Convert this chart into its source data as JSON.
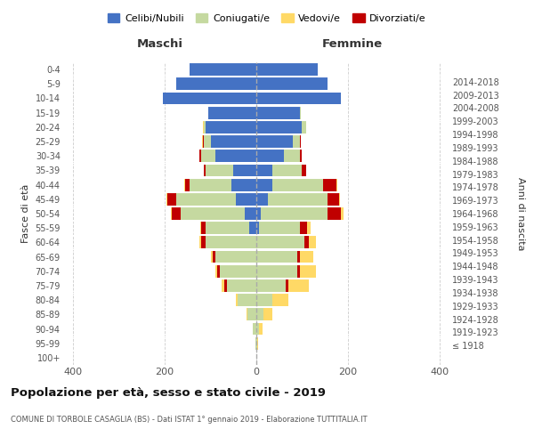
{
  "age_groups": [
    "100+",
    "95-99",
    "90-94",
    "85-89",
    "80-84",
    "75-79",
    "70-74",
    "65-69",
    "60-64",
    "55-59",
    "50-54",
    "45-49",
    "40-44",
    "35-39",
    "30-34",
    "25-29",
    "20-24",
    "15-19",
    "10-14",
    "5-9",
    "0-4"
  ],
  "birth_years": [
    "≤ 1918",
    "1919-1923",
    "1924-1928",
    "1929-1933",
    "1934-1938",
    "1939-1943",
    "1944-1948",
    "1949-1953",
    "1954-1958",
    "1959-1963",
    "1964-1968",
    "1969-1973",
    "1974-1978",
    "1979-1983",
    "1984-1988",
    "1989-1993",
    "1994-1998",
    "1999-2003",
    "2004-2008",
    "2009-2013",
    "2014-2018"
  ],
  "males": {
    "celibi": [
      0,
      0,
      0,
      0,
      0,
      0,
      0,
      0,
      0,
      15,
      25,
      45,
      55,
      50,
      90,
      100,
      110,
      105,
      205,
      175,
      145
    ],
    "coniugati": [
      0,
      2,
      8,
      20,
      40,
      65,
      80,
      90,
      110,
      95,
      140,
      130,
      90,
      60,
      30,
      15,
      5,
      0,
      0,
      0,
      0
    ],
    "vedovi": [
      0,
      0,
      0,
      2,
      5,
      5,
      5,
      5,
      5,
      2,
      2,
      2,
      2,
      0,
      0,
      2,
      2,
      0,
      0,
      0,
      0
    ],
    "divorziati": [
      0,
      0,
      0,
      0,
      0,
      5,
      5,
      5,
      10,
      10,
      20,
      20,
      10,
      5,
      5,
      2,
      0,
      0,
      0,
      0,
      0
    ]
  },
  "females": {
    "nubili": [
      0,
      0,
      0,
      0,
      0,
      0,
      0,
      0,
      0,
      5,
      10,
      25,
      35,
      35,
      60,
      80,
      100,
      95,
      185,
      155,
      135
    ],
    "coniugate": [
      0,
      2,
      5,
      15,
      35,
      65,
      90,
      90,
      105,
      90,
      145,
      130,
      110,
      65,
      35,
      15,
      8,
      2,
      0,
      0,
      0
    ],
    "vedove": [
      0,
      2,
      8,
      20,
      35,
      45,
      35,
      30,
      15,
      8,
      5,
      3,
      2,
      0,
      0,
      0,
      0,
      0,
      0,
      0,
      0
    ],
    "divorziate": [
      0,
      0,
      0,
      0,
      0,
      5,
      5,
      5,
      10,
      15,
      30,
      25,
      30,
      8,
      5,
      2,
      0,
      0,
      0,
      0,
      0
    ]
  },
  "colors": {
    "celibi_nubili": "#4472C4",
    "coniugati": "#C5D9A0",
    "vedovi": "#FFD966",
    "divorziati": "#C00000"
  },
  "xlim": 420,
  "title": "Popolazione per età, sesso e stato civile - 2019",
  "subtitle": "COMUNE DI TORBOLE CASAGLIA (BS) - Dati ISTAT 1° gennaio 2019 - Elaborazione TUTTITALIA.IT",
  "ylabel_left": "Fasce di età",
  "ylabel_right": "Anni di nascita",
  "xlabel_maschi": "Maschi",
  "xlabel_femmine": "Femmine",
  "legend_labels": [
    "Celibi/Nubili",
    "Coniugati/e",
    "Vedovi/e",
    "Divorziati/e"
  ],
  "background_color": "#ffffff",
  "grid_color": "#cccccc"
}
